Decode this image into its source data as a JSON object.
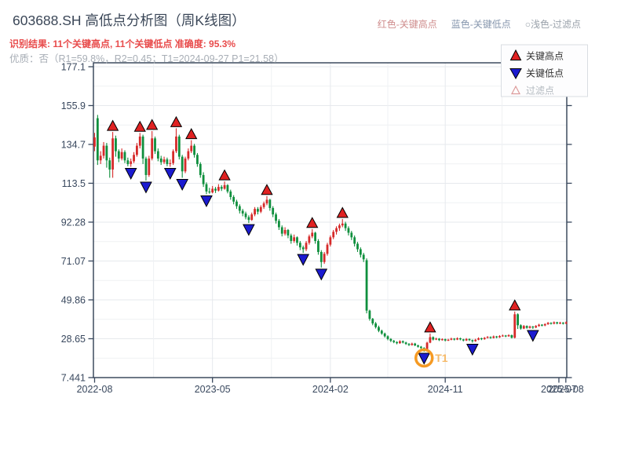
{
  "header": {
    "title": "603688.SH 高低点分析图（周K线图）",
    "result_line": "识别结果: 11个关键高点, 11个关键低点  准确度: 95.3%",
    "result_color": "#e84b4b",
    "quality_line": "优质：否（R1=59.8%，R2=0.45；T1=2024-09-27 P1=21.58）",
    "quality_color": "#a8aeb6",
    "legend": [
      {
        "label": "红色-关键高点",
        "color": "#cf8d8d"
      },
      {
        "label": "蓝色-关键低点",
        "color": "#8797ae"
      },
      {
        "label": "○浅色-过滤点",
        "color": "#9aa2ab"
      }
    ]
  },
  "chart_legend": {
    "items": [
      {
        "icon": "red-up-triangle",
        "label": "关键高点",
        "marker_fill": "#e02222",
        "text_color": "#333333"
      },
      {
        "icon": "blue-down-triangle",
        "label": "关键低点",
        "marker_fill": "#1b1bd0",
        "text_color": "#333333"
      },
      {
        "icon": "light-open-triangle",
        "label": "过滤点",
        "marker_fill": "#ffffff",
        "marker_stroke": "#dc9a9a",
        "text_color": "#b4bac0"
      }
    ]
  },
  "chart_data": {
    "type": "candlestick",
    "period": "weekly",
    "symbol": "603688.SH",
    "y_ticks": [
      {
        "label": "177.1",
        "value": 177.1
      },
      {
        "label": "155.9",
        "value": 155.9
      },
      {
        "label": "134.7",
        "value": 134.7
      },
      {
        "label": "113.5",
        "value": 113.5
      },
      {
        "label": "92.28",
        "value": 92.28
      },
      {
        "label": "71.07",
        "value": 71.07
      },
      {
        "label": "49.86",
        "value": 49.86
      },
      {
        "label": "28.65",
        "value": 28.65
      },
      {
        "label": "7.441",
        "value": 7.441
      }
    ],
    "ylim": [
      7.441,
      177.1
    ],
    "x_ticks": [
      {
        "label": "2022-08",
        "week": 0
      },
      {
        "label": "2023-05",
        "week": 39
      },
      {
        "label": "2024-02",
        "week": 78
      },
      {
        "label": "2024-11",
        "week": 116
      },
      {
        "label": "2025-07",
        "week": 153.6
      },
      {
        "label": "2025-08",
        "week": 155.9
      }
    ],
    "colors": {
      "up": "#d62a2a",
      "down": "#0f8f3d",
      "high_marker": "#e02222",
      "low_marker": "#1b1bd0",
      "annotation": "#f59a23",
      "annotation_text": "#f5b968"
    },
    "candles_ohlc": [
      [
        133.5,
        141,
        131,
        138.5
      ],
      [
        149,
        150.8,
        123.5,
        126
      ],
      [
        126,
        131,
        124,
        128.5
      ],
      [
        128.5,
        136,
        127,
        134
      ],
      [
        134,
        135.5,
        122,
        126
      ],
      [
        126,
        127.5,
        116.5,
        121
      ],
      [
        121,
        141.5,
        116.5,
        138
      ],
      [
        138,
        139.5,
        128,
        131
      ],
      [
        131,
        132,
        125,
        127
      ],
      [
        127,
        132.5,
        126,
        130.5
      ],
      [
        130.5,
        131.5,
        124.5,
        126
      ],
      [
        126,
        127.5,
        122.8,
        124
      ],
      [
        124,
        127,
        122.5,
        125.5
      ],
      [
        125.5,
        130.5,
        124.5,
        129
      ],
      [
        129,
        135.5,
        128,
        134
      ],
      [
        134,
        141,
        132.5,
        139
      ],
      [
        139,
        140,
        124,
        127
      ],
      [
        127,
        128,
        115,
        118
      ],
      [
        118,
        128.5,
        117,
        127
      ],
      [
        127,
        142,
        126,
        138
      ],
      [
        138,
        139,
        129.5,
        131
      ],
      [
        131,
        132.5,
        125.5,
        127
      ],
      [
        127,
        128.5,
        123.5,
        125
      ],
      [
        125,
        128,
        124,
        126.5
      ],
      [
        126.5,
        127.5,
        122.8,
        124
      ],
      [
        124,
        126.5,
        122.5,
        124.5
      ],
      [
        124.5,
        132,
        123.5,
        131
      ],
      [
        131,
        143.5,
        130,
        139
      ],
      [
        139,
        140,
        126.5,
        128
      ],
      [
        128,
        129,
        116.5,
        120
      ],
      [
        120,
        128,
        119,
        127
      ],
      [
        127,
        132.5,
        126,
        131
      ],
      [
        131,
        137,
        130,
        134
      ],
      [
        134,
        135,
        127.5,
        129
      ],
      [
        129,
        130,
        122.5,
        124
      ],
      [
        124,
        125,
        116.5,
        118
      ],
      [
        118,
        119.5,
        111.5,
        113
      ],
      [
        113,
        114,
        107.5,
        109
      ],
      [
        109,
        111,
        107.8,
        108.5
      ],
      [
        108.5,
        112,
        108,
        110.5
      ],
      [
        110.5,
        111.5,
        108.2,
        109.5
      ],
      [
        109.5,
        113,
        109,
        111.5
      ],
      [
        111.5,
        112.5,
        109.3,
        110.5
      ],
      [
        110.5,
        114.5,
        110,
        112.5
      ],
      [
        112.5,
        113,
        108,
        109
      ],
      [
        109,
        110,
        104.5,
        106
      ],
      [
        106,
        107,
        102,
        103.5
      ],
      [
        103.5,
        104.5,
        99.5,
        101
      ],
      [
        101,
        102,
        97,
        98.5
      ],
      [
        98.5,
        99.5,
        95.5,
        97
      ],
      [
        97,
        98,
        93.8,
        95
      ],
      [
        95,
        96,
        91.8,
        93.5
      ],
      [
        93.5,
        97.5,
        93,
        96.5
      ],
      [
        96.5,
        100.5,
        95.5,
        99.5
      ],
      [
        99.5,
        100.5,
        96.5,
        98
      ],
      [
        98,
        101.5,
        97.2,
        100.5
      ],
      [
        100.5,
        103.5,
        99.5,
        102.5
      ],
      [
        102.5,
        106.5,
        101.5,
        104.5
      ],
      [
        104.5,
        105,
        98.5,
        100
      ],
      [
        100,
        101,
        95,
        96.5
      ],
      [
        96.5,
        97.5,
        91.5,
        93
      ],
      [
        93,
        94,
        88,
        89.5
      ],
      [
        89.5,
        90.5,
        84.5,
        86
      ],
      [
        86,
        89.5,
        85,
        88
      ],
      [
        88,
        88.5,
        83.5,
        85
      ],
      [
        85,
        86,
        80.5,
        82
      ],
      [
        82,
        85.5,
        81,
        84
      ],
      [
        84,
        84.5,
        79.5,
        81
      ],
      [
        81,
        82,
        77,
        78.5
      ],
      [
        78.5,
        79.5,
        75.5,
        77.5
      ],
      [
        77.5,
        82,
        76.5,
        81
      ],
      [
        81,
        85.5,
        80,
        84.5
      ],
      [
        84.5,
        88.5,
        83.5,
        86.5
      ],
      [
        86.5,
        87,
        80.5,
        82
      ],
      [
        82,
        83,
        74.5,
        76
      ],
      [
        76,
        77,
        67.5,
        70.5
      ],
      [
        70.5,
        76,
        69.5,
        75
      ],
      [
        75,
        81,
        74,
        80
      ],
      [
        80,
        85,
        79,
        84
      ],
      [
        84,
        88,
        83,
        87
      ],
      [
        87,
        90,
        85.5,
        89
      ],
      [
        89,
        91.5,
        87.5,
        90.5
      ],
      [
        90.5,
        94,
        89.5,
        91.5
      ],
      [
        91.5,
        92.5,
        87.5,
        89
      ],
      [
        89,
        90,
        85,
        86.5
      ],
      [
        86.5,
        87.5,
        82.5,
        84
      ],
      [
        84,
        85,
        79,
        80.5
      ],
      [
        80.5,
        81.5,
        76,
        77.5
      ],
      [
        77.5,
        78.5,
        73,
        74.5
      ],
      [
        74.5,
        75.5,
        70.5,
        72
      ],
      [
        71.5,
        72.5,
        42.5,
        44
      ],
      [
        44,
        44.5,
        38.5,
        39.5
      ],
      [
        39.5,
        40,
        36,
        37
      ],
      [
        37,
        37.8,
        34.2,
        35
      ],
      [
        35,
        35.8,
        32.2,
        33
      ],
      [
        33,
        33.6,
        30.8,
        31.5
      ],
      [
        31.5,
        32,
        29.3,
        30
      ],
      [
        30,
        30.5,
        27.8,
        28.5
      ],
      [
        28.5,
        29,
        26.8,
        27.5
      ],
      [
        27.5,
        28,
        26.2,
        26.8
      ],
      [
        26.8,
        27.3,
        25.6,
        26.2
      ],
      [
        26.2,
        27.8,
        25.9,
        27.3
      ],
      [
        27.3,
        27.7,
        26.1,
        26.6
      ],
      [
        26.6,
        27,
        25.3,
        25.8
      ],
      [
        25.8,
        26.3,
        24.7,
        25.2
      ],
      [
        25.2,
        26.5,
        24.9,
        26
      ],
      [
        26,
        26.4,
        24.6,
        25
      ],
      [
        25,
        25.4,
        23.8,
        24.3
      ],
      [
        24.3,
        24.7,
        23.1,
        23.6
      ],
      [
        23.6,
        24,
        21.58,
        23
      ],
      [
        23,
        27,
        22.8,
        26.5
      ],
      [
        26.5,
        31.5,
        26.2,
        29.5
      ],
      [
        29.5,
        29.9,
        27.7,
        28.2
      ],
      [
        28.2,
        29.2,
        27.9,
        28.7
      ],
      [
        28.7,
        29,
        27.4,
        27.9
      ],
      [
        27.9,
        28.9,
        27.6,
        28.4
      ],
      [
        28.4,
        28.7,
        27.2,
        27.7
      ],
      [
        27.7,
        28.6,
        27.4,
        28.1
      ],
      [
        28.1,
        29.2,
        27.8,
        28.7
      ],
      [
        28.7,
        29,
        27.7,
        28.2
      ],
      [
        28.2,
        29.4,
        27.9,
        28.9
      ],
      [
        28.9,
        29.2,
        27.8,
        28.3
      ],
      [
        28.3,
        28.6,
        27.2,
        27.7
      ],
      [
        27.7,
        29,
        27.4,
        28.5
      ],
      [
        28.5,
        28.8,
        27.4,
        27.9
      ],
      [
        27.9,
        28.2,
        26.5,
        27.3
      ],
      [
        27.3,
        28.6,
        27,
        28.1
      ],
      [
        28.1,
        29.4,
        27.8,
        28.9
      ],
      [
        28.9,
        29.2,
        27.9,
        28.4
      ],
      [
        28.4,
        29.6,
        28.1,
        29.1
      ],
      [
        29.1,
        30.1,
        28.8,
        29.6
      ],
      [
        29.6,
        29.9,
        28.6,
        29.1
      ],
      [
        29.1,
        30.4,
        28.8,
        29.9
      ],
      [
        29.9,
        30.2,
        28.9,
        29.4
      ],
      [
        29.4,
        30.6,
        29.1,
        30.1
      ],
      [
        30.1,
        30.9,
        29.8,
        30.4
      ],
      [
        30.4,
        30.7,
        29.5,
        30
      ],
      [
        30,
        31.1,
        29.7,
        30.6
      ],
      [
        30.6,
        30.9,
        28.8,
        29.2
      ],
      [
        29.2,
        43.5,
        28.8,
        42
      ],
      [
        42,
        42.5,
        34,
        36
      ],
      [
        36,
        36.5,
        33.6,
        34.2
      ],
      [
        34.2,
        36.1,
        33.9,
        35.6
      ],
      [
        35.6,
        35.9,
        34.1,
        34.6
      ],
      [
        34.6,
        35.8,
        34.2,
        35.3
      ],
      [
        35.3,
        35.6,
        34,
        34.8
      ],
      [
        34.8,
        36.1,
        34.4,
        35.6
      ],
      [
        35.6,
        36.8,
        35.2,
        36.3
      ],
      [
        36.3,
        36.6,
        35.4,
        35.9
      ],
      [
        35.9,
        37.1,
        35.5,
        36.6
      ],
      [
        36.6,
        37.8,
        36.2,
        37.3
      ],
      [
        37.3,
        37.6,
        36.4,
        36.9
      ],
      [
        36.9,
        38.1,
        36.5,
        37.6
      ],
      [
        37.6,
        37.9,
        36.5,
        37
      ],
      [
        37,
        37.9,
        36.6,
        37.4
      ],
      [
        37.4,
        37.7,
        36.4,
        36.9
      ],
      [
        36.9,
        38.1,
        36.6,
        37.6
      ]
    ],
    "key_highs": [
      {
        "week": 6,
        "price": 141.5
      },
      {
        "week": 15,
        "price": 141
      },
      {
        "week": 19,
        "price": 142
      },
      {
        "week": 27,
        "price": 143.5
      },
      {
        "week": 32,
        "price": 137
      },
      {
        "week": 43,
        "price": 114.5
      },
      {
        "week": 57,
        "price": 106.5
      },
      {
        "week": 72,
        "price": 88.5
      },
      {
        "week": 82,
        "price": 94
      },
      {
        "week": 111,
        "price": 31.5
      },
      {
        "week": 139,
        "price": 43.5
      }
    ],
    "key_lows": [
      {
        "week": 12,
        "price": 122.5
      },
      {
        "week": 17,
        "price": 115
      },
      {
        "week": 25,
        "price": 122.5
      },
      {
        "week": 29,
        "price": 116.5
      },
      {
        "week": 37,
        "price": 107.5
      },
      {
        "week": 51,
        "price": 91.8
      },
      {
        "week": 69,
        "price": 75.5
      },
      {
        "week": 75,
        "price": 67.5
      },
      {
        "week": 109,
        "price": 21.58
      },
      {
        "week": 125,
        "price": 26.5
      },
      {
        "week": 145,
        "price": 34
      }
    ],
    "t1_annotation": {
      "label": "T1",
      "week": 109,
      "price": 21.58,
      "date": "2024-09-27"
    }
  }
}
